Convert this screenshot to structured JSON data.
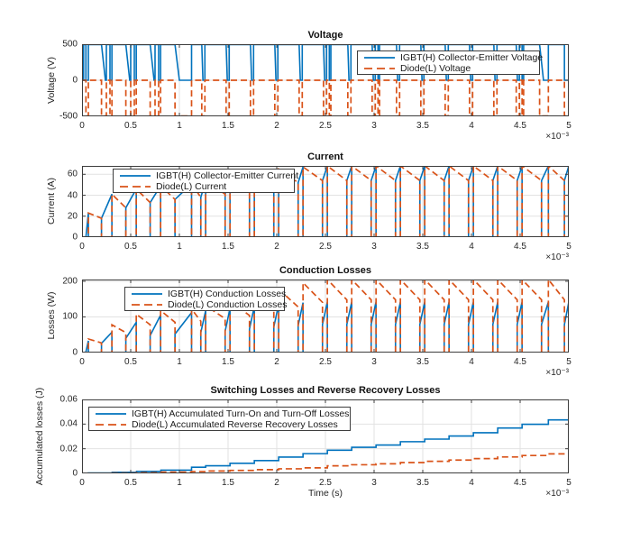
{
  "figure": {
    "background": "#ffffff",
    "colors": {
      "igbt": "#0072BD",
      "diode": "#D95319",
      "axis": "#3d3d3d",
      "grid": "#e2e2e2",
      "tick_text": "#262626"
    }
  },
  "xaxis": {
    "xlim": [
      0,
      5
    ],
    "ticks": [
      [
        0,
        "0"
      ],
      [
        0.5,
        "0.5"
      ],
      [
        1,
        "1"
      ],
      [
        1.5,
        "1.5"
      ],
      [
        2,
        "2"
      ],
      [
        2.5,
        "2.5"
      ],
      [
        3,
        "3"
      ],
      [
        3.5,
        "3.5"
      ],
      [
        4,
        "4"
      ],
      [
        4.5,
        "4.5"
      ],
      [
        5,
        "5"
      ]
    ],
    "multiplier": "×10⁻³",
    "xlabel": "Time (s)"
  },
  "chart_data": [
    {
      "type": "line",
      "title": "Voltage",
      "ylabel": "Voltage (V)",
      "ylim": [
        -505,
        505
      ],
      "yticks": [
        [
          -500,
          "-500"
        ],
        [
          0,
          "0"
        ],
        [
          500,
          "500"
        ]
      ],
      "legend": [
        {
          "label": "IGBT(H) Collector-Emitter Voltage",
          "series": "igbt",
          "style": "solid"
        },
        {
          "label": "Diode(L) Voltage",
          "series": "diode",
          "style": "dashed"
        }
      ],
      "high_level": 500,
      "low_level": 0,
      "diode_low_level": -500,
      "initial_rise_time": 0.016,
      "notches": [
        [
          0.04,
          0.04,
          0.065
        ],
        [
          0.2,
          0.24,
          0.25
        ],
        [
          0.287,
          0.287,
          0.307
        ],
        [
          0.45,
          0.49,
          0.5
        ],
        [
          0.537,
          0.537,
          0.557
        ],
        [
          0.7,
          0.74,
          0.75
        ],
        [
          0.787,
          0.787,
          0.807
        ],
        [
          0.955,
          1.0,
          1.125
        ],
        [
          1.23,
          1.242,
          1.262
        ],
        [
          1.48,
          1.492,
          1.512
        ],
        [
          1.73,
          1.742,
          1.762
        ],
        [
          1.98,
          1.992,
          2.012
        ],
        [
          2.23,
          2.242,
          2.262
        ],
        [
          2.48,
          2.492,
          2.512
        ],
        [
          2.54,
          2.54,
          2.556
        ],
        [
          2.73,
          2.742,
          2.762
        ],
        [
          2.98,
          2.992,
          3.012
        ],
        [
          3.04,
          3.04,
          3.056
        ],
        [
          3.23,
          3.242,
          3.262
        ],
        [
          3.48,
          3.492,
          3.512
        ],
        [
          3.73,
          3.742,
          3.762
        ],
        [
          3.98,
          3.992,
          4.012
        ],
        [
          4.23,
          4.242,
          4.262
        ],
        [
          4.46,
          4.472,
          4.492
        ],
        [
          4.52,
          4.52,
          4.536
        ],
        [
          4.7,
          4.74,
          4.79
        ],
        [
          4.955,
          4.955,
          5.0
        ]
      ]
    },
    {
      "type": "line",
      "title": "Current",
      "ylabel": "Current (A)",
      "ylim": [
        0,
        68
      ],
      "yticks": [
        [
          0,
          "0"
        ],
        [
          20,
          "20"
        ],
        [
          40,
          "40"
        ],
        [
          60,
          "60"
        ]
      ],
      "legend": [
        {
          "label": "IGBT(H) Collector-Emitter Current",
          "series": "igbt",
          "style": "solid"
        },
        {
          "label": "Diode(L) Current",
          "series": "diode",
          "style": "dashed"
        }
      ],
      "cycles": [
        [
          0.04,
          0.065,
          0,
          23
        ],
        [
          0.2,
          0.307,
          18,
          41
        ],
        [
          0.45,
          0.557,
          28,
          46
        ],
        [
          0.7,
          0.807,
          33,
          49
        ],
        [
          0.955,
          1.125,
          36,
          51
        ],
        [
          1.22,
          1.27,
          38,
          54
        ],
        [
          1.47,
          1.52,
          41,
          58
        ],
        [
          1.72,
          1.77,
          45,
          62
        ],
        [
          1.97,
          2.02,
          49,
          65
        ],
        [
          2.22,
          2.27,
          52,
          67
        ],
        [
          2.47,
          2.52,
          54,
          68
        ],
        [
          2.72,
          2.77,
          54,
          68
        ],
        [
          2.97,
          3.02,
          54,
          68
        ],
        [
          3.22,
          3.27,
          54,
          68
        ],
        [
          3.47,
          3.52,
          54,
          68
        ],
        [
          3.72,
          3.77,
          54,
          68
        ],
        [
          3.97,
          4.02,
          54,
          68
        ],
        [
          4.22,
          4.27,
          54,
          68
        ],
        [
          4.47,
          4.52,
          54,
          68
        ],
        [
          4.72,
          4.79,
          54,
          68
        ],
        [
          4.955,
          5.0,
          54,
          68
        ]
      ]
    },
    {
      "type": "line",
      "title": "Conduction Losses",
      "ylabel": "Losses (W)",
      "ylim": [
        0,
        205
      ],
      "yticks": [
        [
          0,
          "0"
        ],
        [
          100,
          "100"
        ],
        [
          200,
          "200"
        ]
      ],
      "legend": [
        {
          "label": "IGBT(H) Conduction Losses",
          "series": "igbt",
          "style": "solid"
        },
        {
          "label": "Diode(L) Conduction Losses",
          "series": "diode",
          "style": "dashed"
        }
      ],
      "loss_cycles": [
        [
          2,
          33,
          38,
          27
        ],
        [
          26,
          57,
          78,
          56
        ],
        [
          40,
          85,
          108,
          78
        ],
        [
          48,
          105,
          118,
          85
        ],
        [
          52,
          112,
          122,
          88
        ],
        [
          56,
          118,
          132,
          95
        ],
        [
          60,
          124,
          145,
          104
        ],
        [
          66,
          130,
          160,
          115
        ],
        [
          72,
          136,
          178,
          128
        ],
        [
          76,
          140,
          196,
          141
        ],
        [
          79,
          142,
          205,
          148
        ],
        [
          79,
          142,
          205,
          148
        ],
        [
          79,
          142,
          205,
          148
        ],
        [
          79,
          142,
          205,
          148
        ],
        [
          79,
          142,
          205,
          148
        ],
        [
          79,
          142,
          205,
          148
        ],
        [
          79,
          142,
          205,
          148
        ],
        [
          79,
          142,
          205,
          148
        ],
        [
          79,
          142,
          205,
          148
        ],
        [
          79,
          142,
          205,
          148
        ],
        [
          79,
          142,
          0,
          0
        ]
      ]
    },
    {
      "type": "line",
      "title": "Switching Losses and Reverse Recovery Losses",
      "ylabel": "Accumulated losses (J)",
      "ylim": [
        0,
        0.06
      ],
      "yticks": [
        [
          0,
          "0"
        ],
        [
          0.02,
          "0.02"
        ],
        [
          0.04,
          "0.04"
        ],
        [
          0.06,
          "0.06"
        ]
      ],
      "legend": [
        {
          "label": "IGBT(H) Accumulated Turn-On and Turn-Off Losses",
          "series": "igbt",
          "style": "solid"
        },
        {
          "label": "Diode(L) Accumulated Reverse Recovery Losses",
          "series": "diode",
          "style": "dashed"
        }
      ],
      "igbt_accumulated": [
        [
          0.065,
          0.0003
        ],
        [
          0.31,
          0.0009
        ],
        [
          0.56,
          0.0016
        ],
        [
          0.81,
          0.0026
        ],
        [
          1.125,
          0.005
        ],
        [
          1.27,
          0.0062
        ],
        [
          1.52,
          0.0082
        ],
        [
          1.77,
          0.0104
        ],
        [
          2.02,
          0.0132
        ],
        [
          2.27,
          0.016
        ],
        [
          2.52,
          0.0188
        ],
        [
          2.77,
          0.0212
        ],
        [
          3.02,
          0.023
        ],
        [
          3.27,
          0.0257
        ],
        [
          3.52,
          0.0278
        ],
        [
          3.77,
          0.0303
        ],
        [
          4.02,
          0.033
        ],
        [
          4.27,
          0.0368
        ],
        [
          4.52,
          0.0398
        ],
        [
          4.79,
          0.0434
        ],
        [
          5.0,
          0.046
        ]
      ],
      "diode_accumulated": [
        [
          0.065,
          0.0001
        ],
        [
          0.31,
          0.0003
        ],
        [
          0.56,
          0.0006
        ],
        [
          0.81,
          0.001
        ],
        [
          1.125,
          0.0015
        ],
        [
          1.27,
          0.0019
        ],
        [
          1.52,
          0.0024
        ],
        [
          1.77,
          0.003
        ],
        [
          2.02,
          0.0037
        ],
        [
          2.27,
          0.0045
        ],
        [
          2.52,
          0.0061
        ],
        [
          2.77,
          0.007
        ],
        [
          3.02,
          0.0078
        ],
        [
          3.27,
          0.0088
        ],
        [
          3.52,
          0.0098
        ],
        [
          3.77,
          0.0108
        ],
        [
          4.02,
          0.012
        ],
        [
          4.27,
          0.0133
        ],
        [
          4.52,
          0.0145
        ],
        [
          4.79,
          0.0158
        ],
        [
          5.0,
          0.0175
        ]
      ]
    }
  ]
}
